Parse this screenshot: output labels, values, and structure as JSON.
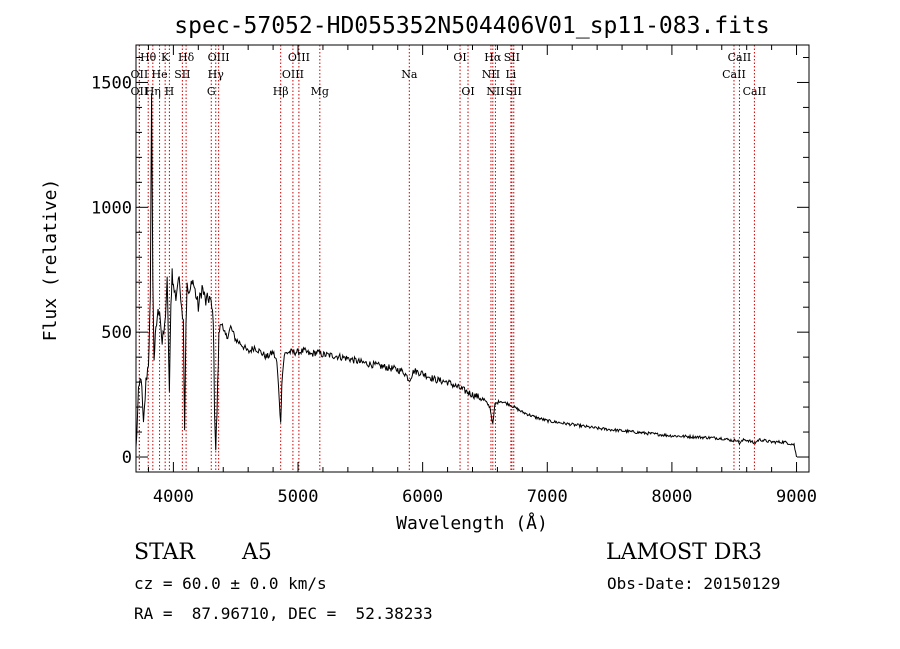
{
  "chart_data": {
    "type": "line",
    "title": "spec-57052-HD055352N504406V01_sp11-083.fits",
    "xlabel": "Wavelength (Å)",
    "ylabel": "Flux (relative)",
    "xlim": [
      3700,
      9100
    ],
    "ylim": [
      -60,
      1650
    ],
    "x_ticks": [
      4000,
      5000,
      6000,
      7000,
      8000,
      9000
    ],
    "x_tick_labels": [
      "4000",
      "5000",
      "6000",
      "7000",
      "8000",
      "9000"
    ],
    "y_ticks": [
      0,
      500,
      1000,
      1500
    ],
    "y_tick_labels": [
      "0",
      "500",
      "1000",
      "1500"
    ],
    "grid": false,
    "series": [
      {
        "name": "flux",
        "color": "#000000",
        "x": [
          3700,
          3720,
          3740,
          3760,
          3780,
          3800,
          3815,
          3825,
          3835,
          3845,
          3855,
          3870,
          3890,
          3910,
          3930,
          3950,
          3968,
          3980,
          3990,
          4000,
          4020,
          4040,
          4060,
          4080,
          4090,
          4101,
          4110,
          4130,
          4150,
          4180,
          4200,
          4230,
          4260,
          4290,
          4320,
          4330,
          4340,
          4350,
          4365,
          4380,
          4400,
          4430,
          4460,
          4500,
          4550,
          4600,
          4650,
          4700,
          4750,
          4800,
          4830,
          4850,
          4861,
          4870,
          4890,
          4920,
          4960,
          5000,
          5050,
          5100,
          5150,
          5200,
          5300,
          5400,
          5500,
          5600,
          5700,
          5800,
          5850,
          5893,
          5930,
          6000,
          6100,
          6200,
          6300,
          6400,
          6450,
          6500,
          6540,
          6563,
          6580,
          6620,
          6700,
          6800,
          6900,
          7000,
          7200,
          7400,
          7600,
          7800,
          8000,
          8200,
          8400,
          8498,
          8520,
          8542,
          8580,
          8620,
          8662,
          8700,
          8800,
          8900,
          8980,
          9000
        ],
        "y": [
          30,
          250,
          330,
          120,
          300,
          380,
          620,
          1480,
          700,
          400,
          470,
          560,
          600,
          450,
          520,
          700,
          260,
          600,
          750,
          680,
          640,
          720,
          650,
          540,
          120,
          540,
          680,
          640,
          720,
          650,
          600,
          680,
          620,
          640,
          560,
          200,
          30,
          180,
          480,
          560,
          500,
          480,
          520,
          470,
          450,
          420,
          440,
          420,
          400,
          420,
          380,
          230,
          130,
          300,
          410,
          420,
          420,
          420,
          425,
          410,
          420,
          410,
          405,
          395,
          380,
          370,
          360,
          350,
          340,
          310,
          345,
          335,
          310,
          300,
          275,
          250,
          240,
          225,
          200,
          130,
          210,
          225,
          210,
          180,
          160,
          145,
          130,
          115,
          105,
          95,
          85,
          80,
          75,
          65,
          70,
          55,
          70,
          65,
          55,
          70,
          60,
          60,
          50,
          0
        ]
      }
    ],
    "lines": [
      {
        "label": "Hθ",
        "wavelength": 3798,
        "row": 1
      },
      {
        "label": "OII",
        "wavelength": 3727,
        "row": 2
      },
      {
        "label": "OII",
        "wavelength": 3727,
        "row": 3
      },
      {
        "label": "He",
        "wavelength": 3889,
        "row": 2
      },
      {
        "label": "K",
        "wavelength": 3934,
        "row": 1
      },
      {
        "label": "Hη",
        "wavelength": 3835,
        "row": 3
      },
      {
        "label": "SII",
        "wavelength": 4072,
        "row": 2
      },
      {
        "label": "H",
        "wavelength": 3968,
        "row": 3
      },
      {
        "label": "Hδ",
        "wavelength": 4102,
        "row": 1
      },
      {
        "label": "OIII",
        "wavelength": 4363,
        "row": 1
      },
      {
        "label": "Hγ",
        "wavelength": 4340,
        "row": 2
      },
      {
        "label": "G",
        "wavelength": 4304,
        "row": 3
      },
      {
        "label": "OIII",
        "wavelength": 5007,
        "row": 1
      },
      {
        "label": "OIII",
        "wavelength": 4959,
        "row": 2
      },
      {
        "label": "Hβ",
        "wavelength": 4861,
        "row": 3
      },
      {
        "label": "Mg",
        "wavelength": 5175,
        "row": 3
      },
      {
        "label": "Na",
        "wavelength": 5893,
        "row": 2
      },
      {
        "label": "OI",
        "wavelength": 6300,
        "row": 1
      },
      {
        "label": "OI",
        "wavelength": 6364,
        "row": 3
      },
      {
        "label": "Hα",
        "wavelength": 6563,
        "row": 1
      },
      {
        "label": "SII",
        "wavelength": 6716,
        "row": 1
      },
      {
        "label": "NII",
        "wavelength": 6548,
        "row": 2
      },
      {
        "label": "Li",
        "wavelength": 6708,
        "row": 2
      },
      {
        "label": "NII",
        "wavelength": 6584,
        "row": 3
      },
      {
        "label": "SII",
        "wavelength": 6731,
        "row": 3
      },
      {
        "label": "CaII",
        "wavelength": 8542,
        "row": 1
      },
      {
        "label": "CaII",
        "wavelength": 8498,
        "row": 2
      },
      {
        "label": "CaII",
        "wavelength": 8662,
        "row": 3
      }
    ],
    "line_color": "#cc0000"
  },
  "footer": {
    "object_class": "STAR",
    "subclass": "A5",
    "survey": "LAMOST DR3",
    "velocity": "cz = 60.0 ± 0.0 km/s",
    "obs_date": "Obs-Date: 20150129",
    "coords": "RA =  87.96710, DEC =  52.38233"
  }
}
